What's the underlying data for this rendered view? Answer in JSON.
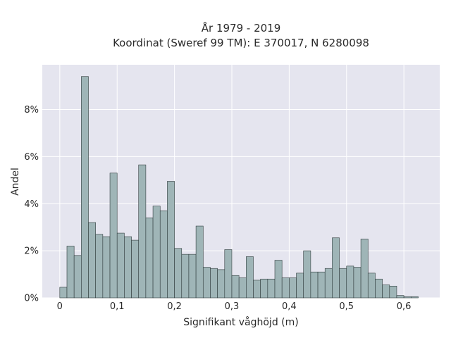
{
  "chart_data": {
    "type": "bar",
    "title_line1": "År 1979 - 2019",
    "title_line2": "Koordinat (Sweref 99 TM): E 370017, N 6280098",
    "xlabel": "Signifikant våghöjd (m)",
    "ylabel": "Andel",
    "x_ticks": [
      {
        "value": 0,
        "label": "0"
      },
      {
        "value": 0.1,
        "label": "0,1"
      },
      {
        "value": 0.2,
        "label": "0,2"
      },
      {
        "value": 0.3,
        "label": "0,3"
      },
      {
        "value": 0.4,
        "label": "0,4"
      },
      {
        "value": 0.5,
        "label": "0,5"
      },
      {
        "value": 0.6,
        "label": "0,6"
      }
    ],
    "y_ticks": [
      {
        "value": 0,
        "label": "0%"
      },
      {
        "value": 2,
        "label": "2%"
      },
      {
        "value": 4,
        "label": "4%"
      },
      {
        "value": 6,
        "label": "6%"
      },
      {
        "value": 8,
        "label": "8%"
      }
    ],
    "xlim": [
      -0.0305,
      0.6625
    ],
    "ylim": [
      0,
      9.9
    ],
    "grid": true,
    "bin_width": 0.0125,
    "bin_start": 0,
    "values": [
      0.45,
      2.2,
      1.8,
      9.4,
      3.2,
      2.7,
      2.6,
      5.3,
      2.75,
      2.6,
      2.45,
      5.65,
      3.4,
      3.9,
      3.7,
      4.95,
      2.1,
      1.85,
      1.85,
      3.05,
      1.3,
      1.25,
      1.2,
      2.05,
      0.95,
      0.85,
      1.75,
      0.75,
      0.8,
      0.8,
      1.6,
      0.85,
      0.85,
      1.05,
      2.0,
      1.1,
      1.1,
      1.25,
      2.55,
      1.25,
      1.35,
      1.3,
      2.5,
      1.05,
      0.8,
      0.55,
      0.5,
      0.1,
      0.05,
      0.05
    ],
    "colors": {
      "bar_fill": "#9fb5b7",
      "bar_stroke": "#2f3b3c",
      "plot_bg": "#e5e5ef",
      "grid": "#ffffff"
    }
  }
}
